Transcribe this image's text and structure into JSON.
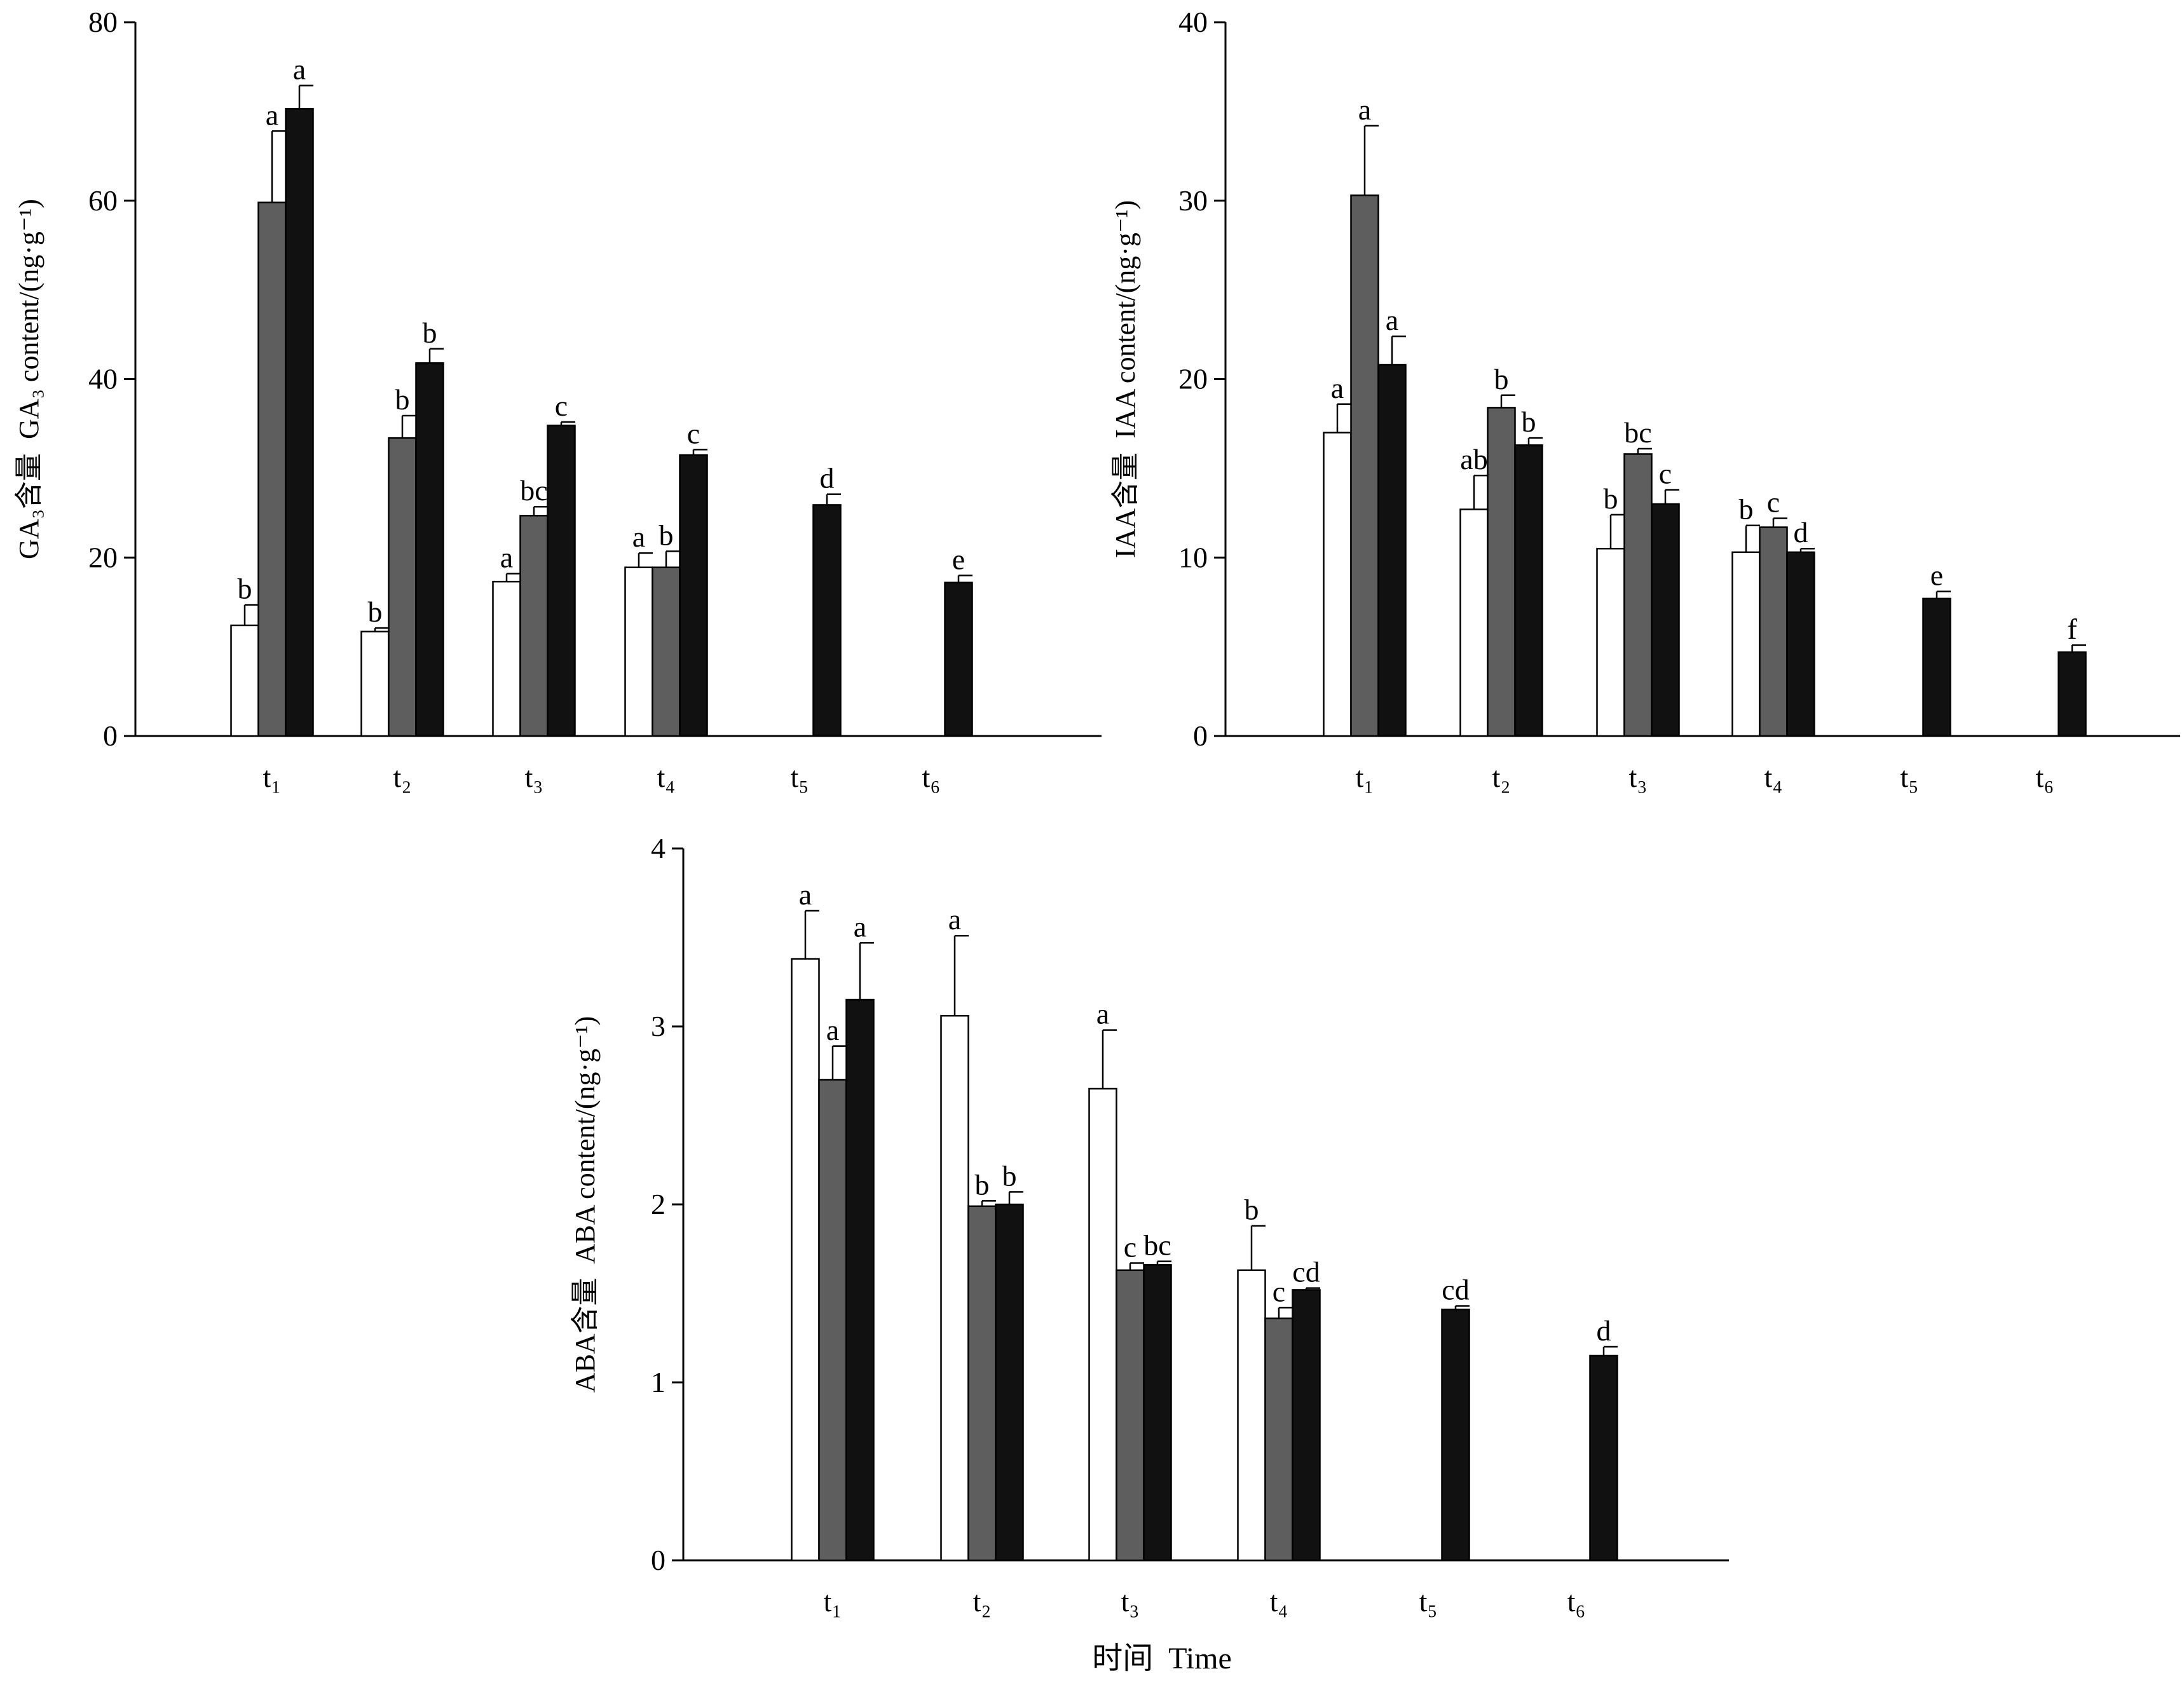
{
  "figure": {
    "x_title": "时间  Time",
    "series_colors": [
      "#ffffff",
      "#5e5e5e",
      "#111111"
    ]
  },
  "chart_data": [
    {
      "type": "bar",
      "panel": "GA3",
      "ylabel": "GA₃含量  GA₃ content/(ng·g⁻¹)",
      "ylim": [
        0,
        80
      ],
      "yticks": [
        0,
        20,
        40,
        60,
        80
      ],
      "categories": [
        "t₁",
        "t₂",
        "t₃",
        "t₄",
        "t₅",
        "t₆"
      ],
      "series": [
        {
          "values": [
            12.4,
            11.7,
            17.3,
            18.9,
            null,
            null
          ],
          "errors": [
            2.3,
            0.4,
            0.9,
            1.6,
            null,
            null
          ],
          "labels": [
            "b",
            "b",
            "a",
            "a",
            "",
            ""
          ]
        },
        {
          "values": [
            59.8,
            33.4,
            24.7,
            18.9,
            null,
            null
          ],
          "errors": [
            8.0,
            2.5,
            1.0,
            1.8,
            null,
            null
          ],
          "labels": [
            "a",
            "b",
            "bc",
            "b",
            "",
            ""
          ]
        },
        {
          "values": [
            70.3,
            41.8,
            34.8,
            31.5,
            25.9,
            17.2
          ],
          "errors": [
            2.6,
            1.6,
            0.4,
            0.6,
            1.2,
            0.8
          ],
          "labels": [
            "a",
            "b",
            "c",
            "c",
            "d",
            "e"
          ]
        }
      ]
    },
    {
      "type": "bar",
      "panel": "IAA",
      "ylabel": "IAA含量  IAA content/(ng·g⁻¹)",
      "ylim": [
        0,
        40
      ],
      "yticks": [
        0,
        10,
        20,
        30,
        40
      ],
      "categories": [
        "t₁",
        "t₂",
        "t₃",
        "t₄",
        "t₅",
        "t₆"
      ],
      "series": [
        {
          "values": [
            17.0,
            12.7,
            10.5,
            10.3,
            null,
            null
          ],
          "errors": [
            1.6,
            1.9,
            1.9,
            1.5,
            null,
            null
          ],
          "labels": [
            "a",
            "ab",
            "b",
            "b",
            "",
            ""
          ]
        },
        {
          "values": [
            30.3,
            18.4,
            15.8,
            11.7,
            null,
            null
          ],
          "errors": [
            3.9,
            0.7,
            0.3,
            0.5,
            null,
            null
          ],
          "labels": [
            "a",
            "b",
            "bc",
            "c",
            "",
            ""
          ]
        },
        {
          "values": [
            20.8,
            16.3,
            13.0,
            10.3,
            7.7,
            4.7
          ],
          "errors": [
            1.6,
            0.4,
            0.8,
            0.2,
            0.4,
            0.4
          ],
          "labels": [
            "a",
            "b",
            "c",
            "d",
            "e",
            "f"
          ]
        }
      ]
    },
    {
      "type": "bar",
      "panel": "ABA",
      "ylabel": "ABA含量  ABA content/(ng·g⁻¹)",
      "ylim": [
        0,
        4
      ],
      "yticks": [
        0,
        1,
        2,
        3,
        4
      ],
      "categories": [
        "t₁",
        "t₂",
        "t₃",
        "t₄",
        "t₅",
        "t₆"
      ],
      "series": [
        {
          "values": [
            3.38,
            3.06,
            2.65,
            1.63,
            null,
            null
          ],
          "errors": [
            0.27,
            0.45,
            0.33,
            0.25,
            null,
            null
          ],
          "labels": [
            "a",
            "a",
            "a",
            "b",
            "",
            ""
          ]
        },
        {
          "values": [
            2.7,
            1.99,
            1.63,
            1.36,
            null,
            null
          ],
          "errors": [
            0.19,
            0.03,
            0.04,
            0.06,
            null,
            null
          ],
          "labels": [
            "a",
            "b",
            "c",
            "c",
            "",
            ""
          ]
        },
        {
          "values": [
            3.15,
            2.0,
            1.66,
            1.52,
            1.41,
            1.15
          ],
          "errors": [
            0.32,
            0.07,
            0.02,
            0.01,
            0.02,
            0.05
          ],
          "labels": [
            "a",
            "b",
            "bc",
            "cd",
            "cd",
            "d"
          ]
        }
      ]
    }
  ]
}
